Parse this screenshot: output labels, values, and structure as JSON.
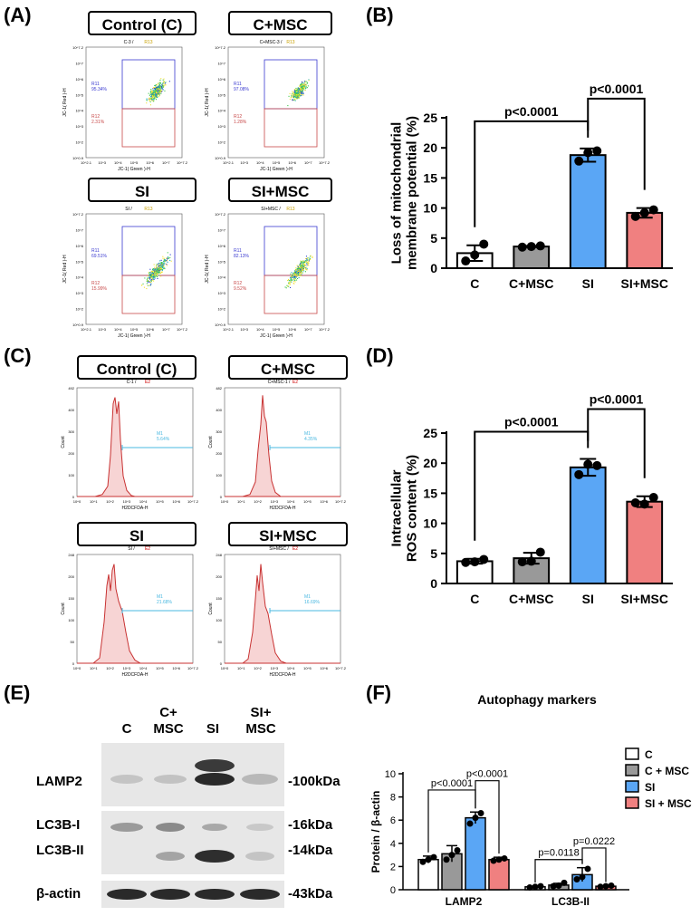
{
  "panels": {
    "a": "(A)",
    "b": "(B)",
    "c": "(C)",
    "d": "(D)",
    "e": "(E)",
    "f": "(F)"
  },
  "colors": {
    "C": "#ffffff",
    "C_MSC": "#999999",
    "SI": "#5aa6f5",
    "SI_MSC": "#f08080",
    "gate_upper": "#3a3ad0",
    "gate_lower": "#c84a4a",
    "hist_line": "#c83232",
    "hist_fill": "#f7d4d4",
    "marker": "#4ab8e0"
  },
  "flow": {
    "cond_labels": [
      "Control (C)",
      "C+MSC",
      "SI",
      "SI+MSC"
    ],
    "plots": [
      {
        "title": "C-3 /",
        "title_hl": "R13",
        "r11_name": "R11",
        "r11_pct": "95.34%",
        "r12_name": "R12",
        "r12_pct": "2.31%"
      },
      {
        "title": "C+MSC-3 /",
        "title_hl": "R13",
        "r11_name": "R11",
        "r11_pct": "97.08%",
        "r12_name": "R12",
        "r12_pct": "1.28%"
      },
      {
        "title": "SI /",
        "title_hl": "R13",
        "r11_name": "R11",
        "r11_pct": "69.51%",
        "r12_name": "R12",
        "r12_pct": "15.99%"
      },
      {
        "title": "SI+MSC /",
        "title_hl": "R13",
        "r11_name": "R11",
        "r11_pct": "82.13%",
        "r12_name": "R12",
        "r12_pct": "9.52%"
      }
    ],
    "xlabel": "JC-1( Green )-H",
    "ylabel": "JC-1( Red )-H",
    "xticks": [
      "10^2.1",
      "10^3",
      "10^4",
      "10^5",
      "10^6",
      "10^7",
      "10^7.2"
    ],
    "yticks": [
      "10^7.2",
      "10^7",
      "10^6",
      "10^5",
      "10^4",
      "10^3",
      "10^2",
      "10^0.9"
    ]
  },
  "hist": {
    "cond_labels": [
      "Control (C)",
      "C+MSC",
      "SI",
      "SI+MSC"
    ],
    "plots": [
      {
        "title": "C-1 /",
        "title_hl": "E2",
        "m_name": "M1",
        "m_pct": "5.64%",
        "ymax": "492",
        "yticks": [
          "492",
          "400",
          "300",
          "200",
          "100",
          "0"
        ]
      },
      {
        "title": "C+MSC-1 /",
        "title_hl": "E2",
        "m_name": "M1",
        "m_pct": "4.35%",
        "ymax": "482",
        "yticks": [
          "482",
          "400",
          "300",
          "200",
          "100",
          "0"
        ]
      },
      {
        "title": "SI /",
        "title_hl": "E2",
        "m_name": "M1",
        "m_pct": "21.68%",
        "ymax": "248",
        "yticks": [
          "248",
          "200",
          "150",
          "100",
          "50",
          "0"
        ]
      },
      {
        "title": "SI+MSC /",
        "title_hl": "E2",
        "m_name": "M1",
        "m_pct": "16.69%",
        "ymax": "248",
        "yticks": [
          "248",
          "200",
          "150",
          "100",
          "50",
          "0"
        ]
      }
    ],
    "xlabel": "H2DCFDA-H",
    "ylabel": "Count",
    "xticks": [
      "10^0",
      "10^1",
      "10^2",
      "10^3",
      "10^4",
      "10^5",
      "10^6",
      "10^7.2"
    ]
  },
  "blot": {
    "lanes": [
      "C",
      "C+\nMSC",
      "SI",
      "SI+\nMSC"
    ],
    "rows": [
      {
        "label": "LAMP2",
        "kda": "-100kDa"
      },
      {
        "label": "LC3B-I",
        "kda": "-16kDa"
      },
      {
        "label": "LC3B-II",
        "kda": "-14kDa"
      },
      {
        "label": "β-actin",
        "kda": "-43kDa"
      }
    ]
  },
  "chart_data": [
    {
      "id": "B",
      "type": "bar",
      "ylabel": "Loss of  mitochondrial\nmembrane potential (%)",
      "categories": [
        "C",
        "C+MSC",
        "SI",
        "SI+MSC"
      ],
      "values": [
        2.5,
        3.6,
        18.8,
        9.2
      ],
      "errors": [
        1.3,
        0.1,
        1.1,
        0.8
      ],
      "points": [
        [
          1.2,
          2.2,
          4.0
        ],
        [
          3.5,
          3.6,
          3.7
        ],
        [
          17.8,
          19.2,
          19.5
        ],
        [
          8.6,
          9.2,
          9.7
        ]
      ],
      "ylim": [
        0,
        25
      ],
      "yticks": [
        0,
        5,
        10,
        15,
        20,
        25
      ],
      "comparisons": [
        {
          "from": 0,
          "to": 2,
          "label": "p<0.0001"
        },
        {
          "from": 2,
          "to": 3,
          "label": "p<0.0001"
        }
      ]
    },
    {
      "id": "D",
      "type": "bar",
      "ylabel": "Intracellular\nROS content (%)",
      "categories": [
        "C",
        "C+MSC",
        "SI",
        "SI+MSC"
      ],
      "values": [
        3.7,
        4.2,
        19.3,
        13.6
      ],
      "errors": [
        0.4,
        0.9,
        1.4,
        0.9
      ],
      "points": [
        [
          3.5,
          3.6,
          4.0
        ],
        [
          3.6,
          3.7,
          5.2
        ],
        [
          18.1,
          19.8,
          19.6
        ],
        [
          13.4,
          13.2,
          14.3
        ]
      ],
      "ylim": [
        0,
        25
      ],
      "yticks": [
        0,
        5,
        10,
        15,
        20,
        25
      ],
      "comparisons": [
        {
          "from": 0,
          "to": 2,
          "label": "p<0.0001"
        },
        {
          "from": 2,
          "to": 3,
          "label": "p<0.0001"
        }
      ]
    },
    {
      "id": "F",
      "type": "bar",
      "title": "Autophagy markers",
      "ylabel": "Protein / β-actin",
      "groups": [
        "LAMP2",
        "LC3B-II"
      ],
      "series": [
        {
          "name": "C",
          "values": [
            2.6,
            0.25
          ],
          "errors": [
            0.3,
            0.05
          ],
          "points": [
            [
              2.4,
              2.6,
              2.8
            ],
            [
              0.2,
              0.25,
              0.3
            ]
          ]
        },
        {
          "name": "C + MSC",
          "values": [
            3.1,
            0.4
          ],
          "errors": [
            0.7,
            0.15
          ],
          "points": [
            [
              2.6,
              3.0,
              3.4
            ],
            [
              0.3,
              0.35,
              0.6
            ]
          ]
        },
        {
          "name": "SI",
          "values": [
            6.2,
            1.3
          ],
          "errors": [
            0.5,
            0.6
          ],
          "points": [
            [
              5.7,
              6.2,
              6.6
            ],
            [
              0.9,
              1.1,
              1.8
            ]
          ]
        },
        {
          "name": "SI + MSC",
          "values": [
            2.6,
            0.3
          ],
          "errors": [
            0.2,
            0.05
          ],
          "points": [
            [
              2.5,
              2.6,
              2.7
            ],
            [
              0.25,
              0.3,
              0.35
            ]
          ]
        }
      ],
      "ylim": [
        0,
        10
      ],
      "yticks": [
        0,
        2,
        4,
        6,
        8,
        10
      ],
      "comparisons": [
        {
          "group": 0,
          "from": 0,
          "to": 2,
          "label": "p<0.0001"
        },
        {
          "group": 0,
          "from": 2,
          "to": 3,
          "label": "p<0.0001"
        },
        {
          "group": 1,
          "from": 0,
          "to": 2,
          "label": "p=0.0118"
        },
        {
          "group": 1,
          "from": 2,
          "to": 3,
          "label": "p=0.0222"
        }
      ]
    }
  ]
}
